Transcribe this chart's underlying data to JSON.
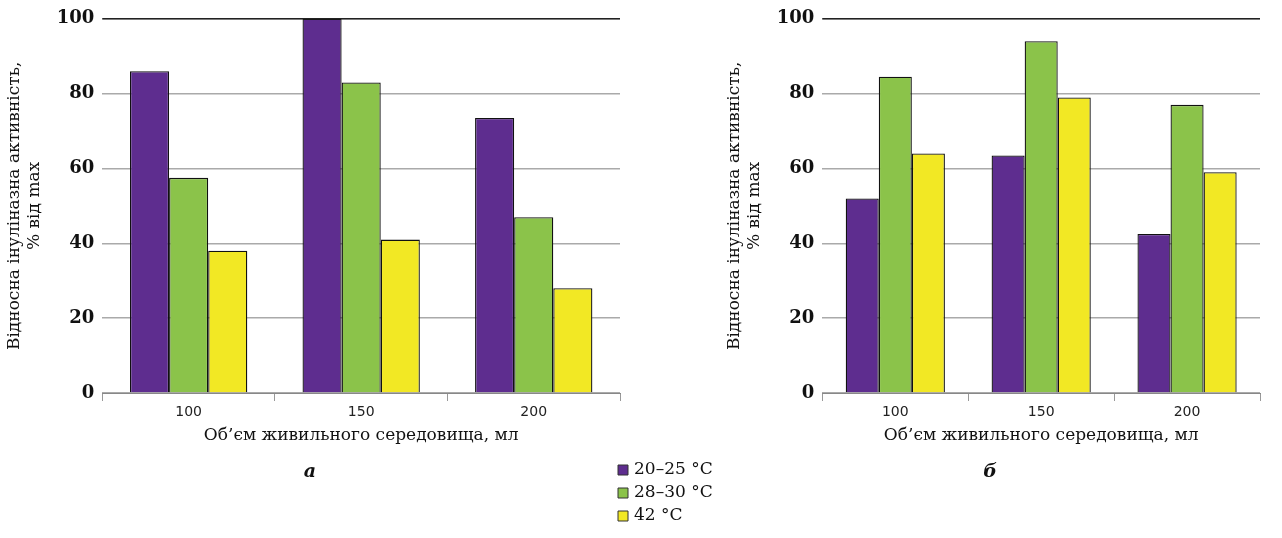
{
  "chart_data": [
    {
      "type": "bar",
      "title": "а",
      "xlabel": "Об’єм живильного середовища, мл",
      "ylabel": "Відносна інуліназна активність,\n% від max",
      "categories": [
        "100",
        "150",
        "200"
      ],
      "series": [
        {
          "name": "20–25 °C",
          "color": "#5e2d8f",
          "values": [
            86,
            100,
            73.5
          ]
        },
        {
          "name": "28–30 °C",
          "color": "#8bc34a",
          "values": [
            57.5,
            83,
            47
          ]
        },
        {
          "name": "42 °C",
          "color": "#f2e824",
          "values": [
            38,
            41,
            28
          ]
        }
      ],
      "ylim": [
        0,
        100
      ],
      "yticks": [
        0,
        20,
        40,
        60,
        80,
        100
      ],
      "grid": "y",
      "legend": "bottom right"
    },
    {
      "type": "bar",
      "title": "б",
      "xlabel": "Об’єм живильного середовища, мл",
      "ylabel": "Відносна інуліназна активність,\n% від max",
      "categories": [
        "100",
        "150",
        "200"
      ],
      "series": [
        {
          "color": "#5e2d8f",
          "values": [
            52,
            63.5,
            42.5
          ]
        },
        {
          "color": "#8bc34a",
          "values": [
            84.5,
            94,
            77
          ]
        },
        {
          "color": "#f2e824",
          "values": [
            64,
            79,
            59
          ]
        }
      ],
      "ylim": [
        0,
        100
      ],
      "yticks": [
        0,
        20,
        40,
        60,
        80,
        100
      ],
      "grid": "y"
    }
  ]
}
